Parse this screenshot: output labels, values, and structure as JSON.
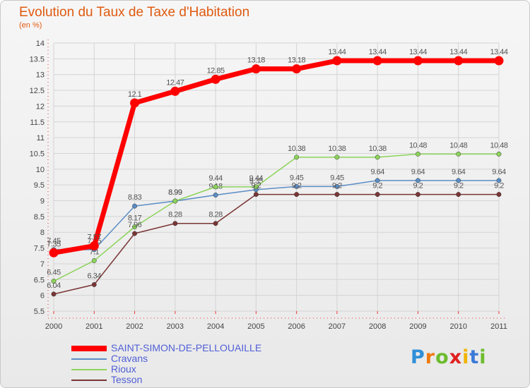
{
  "title": "Evolution du Taux de Taxe d'Habitation",
  "subtitle": "(en %)",
  "logo": {
    "letters": [
      "P",
      "r",
      "o",
      "x",
      "i",
      "t",
      "i"
    ],
    "colors": [
      "#2f8fd8",
      "#f07a10",
      "#6cbc2c",
      "#e02020",
      "#f0b400",
      "#3c7ad8",
      "#6cbc2c"
    ]
  },
  "colors": {
    "axis": "#e33",
    "grid": "#d4d4d4",
    "tick_text": "#444444",
    "value_text": "#555555"
  },
  "chart_data": {
    "type": "line",
    "title": "Evolution du Taux de Taxe d'Habitation",
    "ylabel": "(en %)",
    "xlabel": "",
    "x": [
      "2000",
      "2001",
      "2002",
      "2003",
      "2004",
      "2005",
      "2006",
      "2007",
      "2008",
      "2009",
      "2010",
      "2011"
    ],
    "ylim": [
      5.5,
      14
    ],
    "yticks": [
      "5.5",
      "6",
      "6.5",
      "7",
      "7.5",
      "8",
      "8.5",
      "9",
      "9.5",
      "10",
      "10.5",
      "11",
      "11.5",
      "12",
      "12.5",
      "13",
      "13.5",
      "14"
    ],
    "grid": true,
    "legend_position": "bottom-left",
    "series": [
      {
        "name": "SAINT-SIMON-DE-PELLOUAILLE",
        "color": "#ff0000",
        "values": [
          7.35,
          7.57,
          12.1,
          12.47,
          12.85,
          13.18,
          13.18,
          13.44,
          13.44,
          13.44,
          13.44,
          13.44
        ],
        "labels": [
          "7.35",
          "7.57",
          "12.1",
          "12.47",
          "12.85",
          "13.18",
          "13.18",
          "13.44",
          "13.44",
          "13.44",
          "13.44",
          "13.44"
        ]
      },
      {
        "name": "Cravans",
        "color": "#5b8dc5",
        "values": [
          7.45,
          7.45,
          8.83,
          8.99,
          9.18,
          9.35,
          9.45,
          9.45,
          9.64,
          9.64,
          9.64,
          9.64
        ],
        "labels": [
          "7.45",
          "7.45",
          "8.83",
          "8.99",
          "9.18",
          "9.35",
          "9.45",
          "9.45",
          "9.64",
          "9.64",
          "9.64",
          "9.64"
        ]
      },
      {
        "name": "Rioux",
        "color": "#8cd45a",
        "values": [
          6.45,
          7.1,
          8.17,
          8.99,
          9.44,
          9.44,
          10.38,
          10.38,
          10.38,
          10.48,
          10.48,
          10.48
        ],
        "labels": [
          "6.45",
          "7.1",
          "8.17",
          "8.99",
          "9.44",
          "9.44",
          "10.38",
          "10.38",
          "10.38",
          "10.48",
          "10.48",
          "10.48"
        ]
      },
      {
        "name": "Tesson",
        "color": "#7a3535",
        "values": [
          6.04,
          6.34,
          7.96,
          8.28,
          8.28,
          9.2,
          9.2,
          9.2,
          9.2,
          9.2,
          9.2,
          9.2
        ],
        "labels": [
          "6.04",
          "6.34",
          "7.96",
          "8.28",
          "8.28",
          "9.2",
          "9.2",
          "9.2",
          "9.2",
          "9.2",
          "9.2",
          "9.2"
        ]
      }
    ]
  }
}
